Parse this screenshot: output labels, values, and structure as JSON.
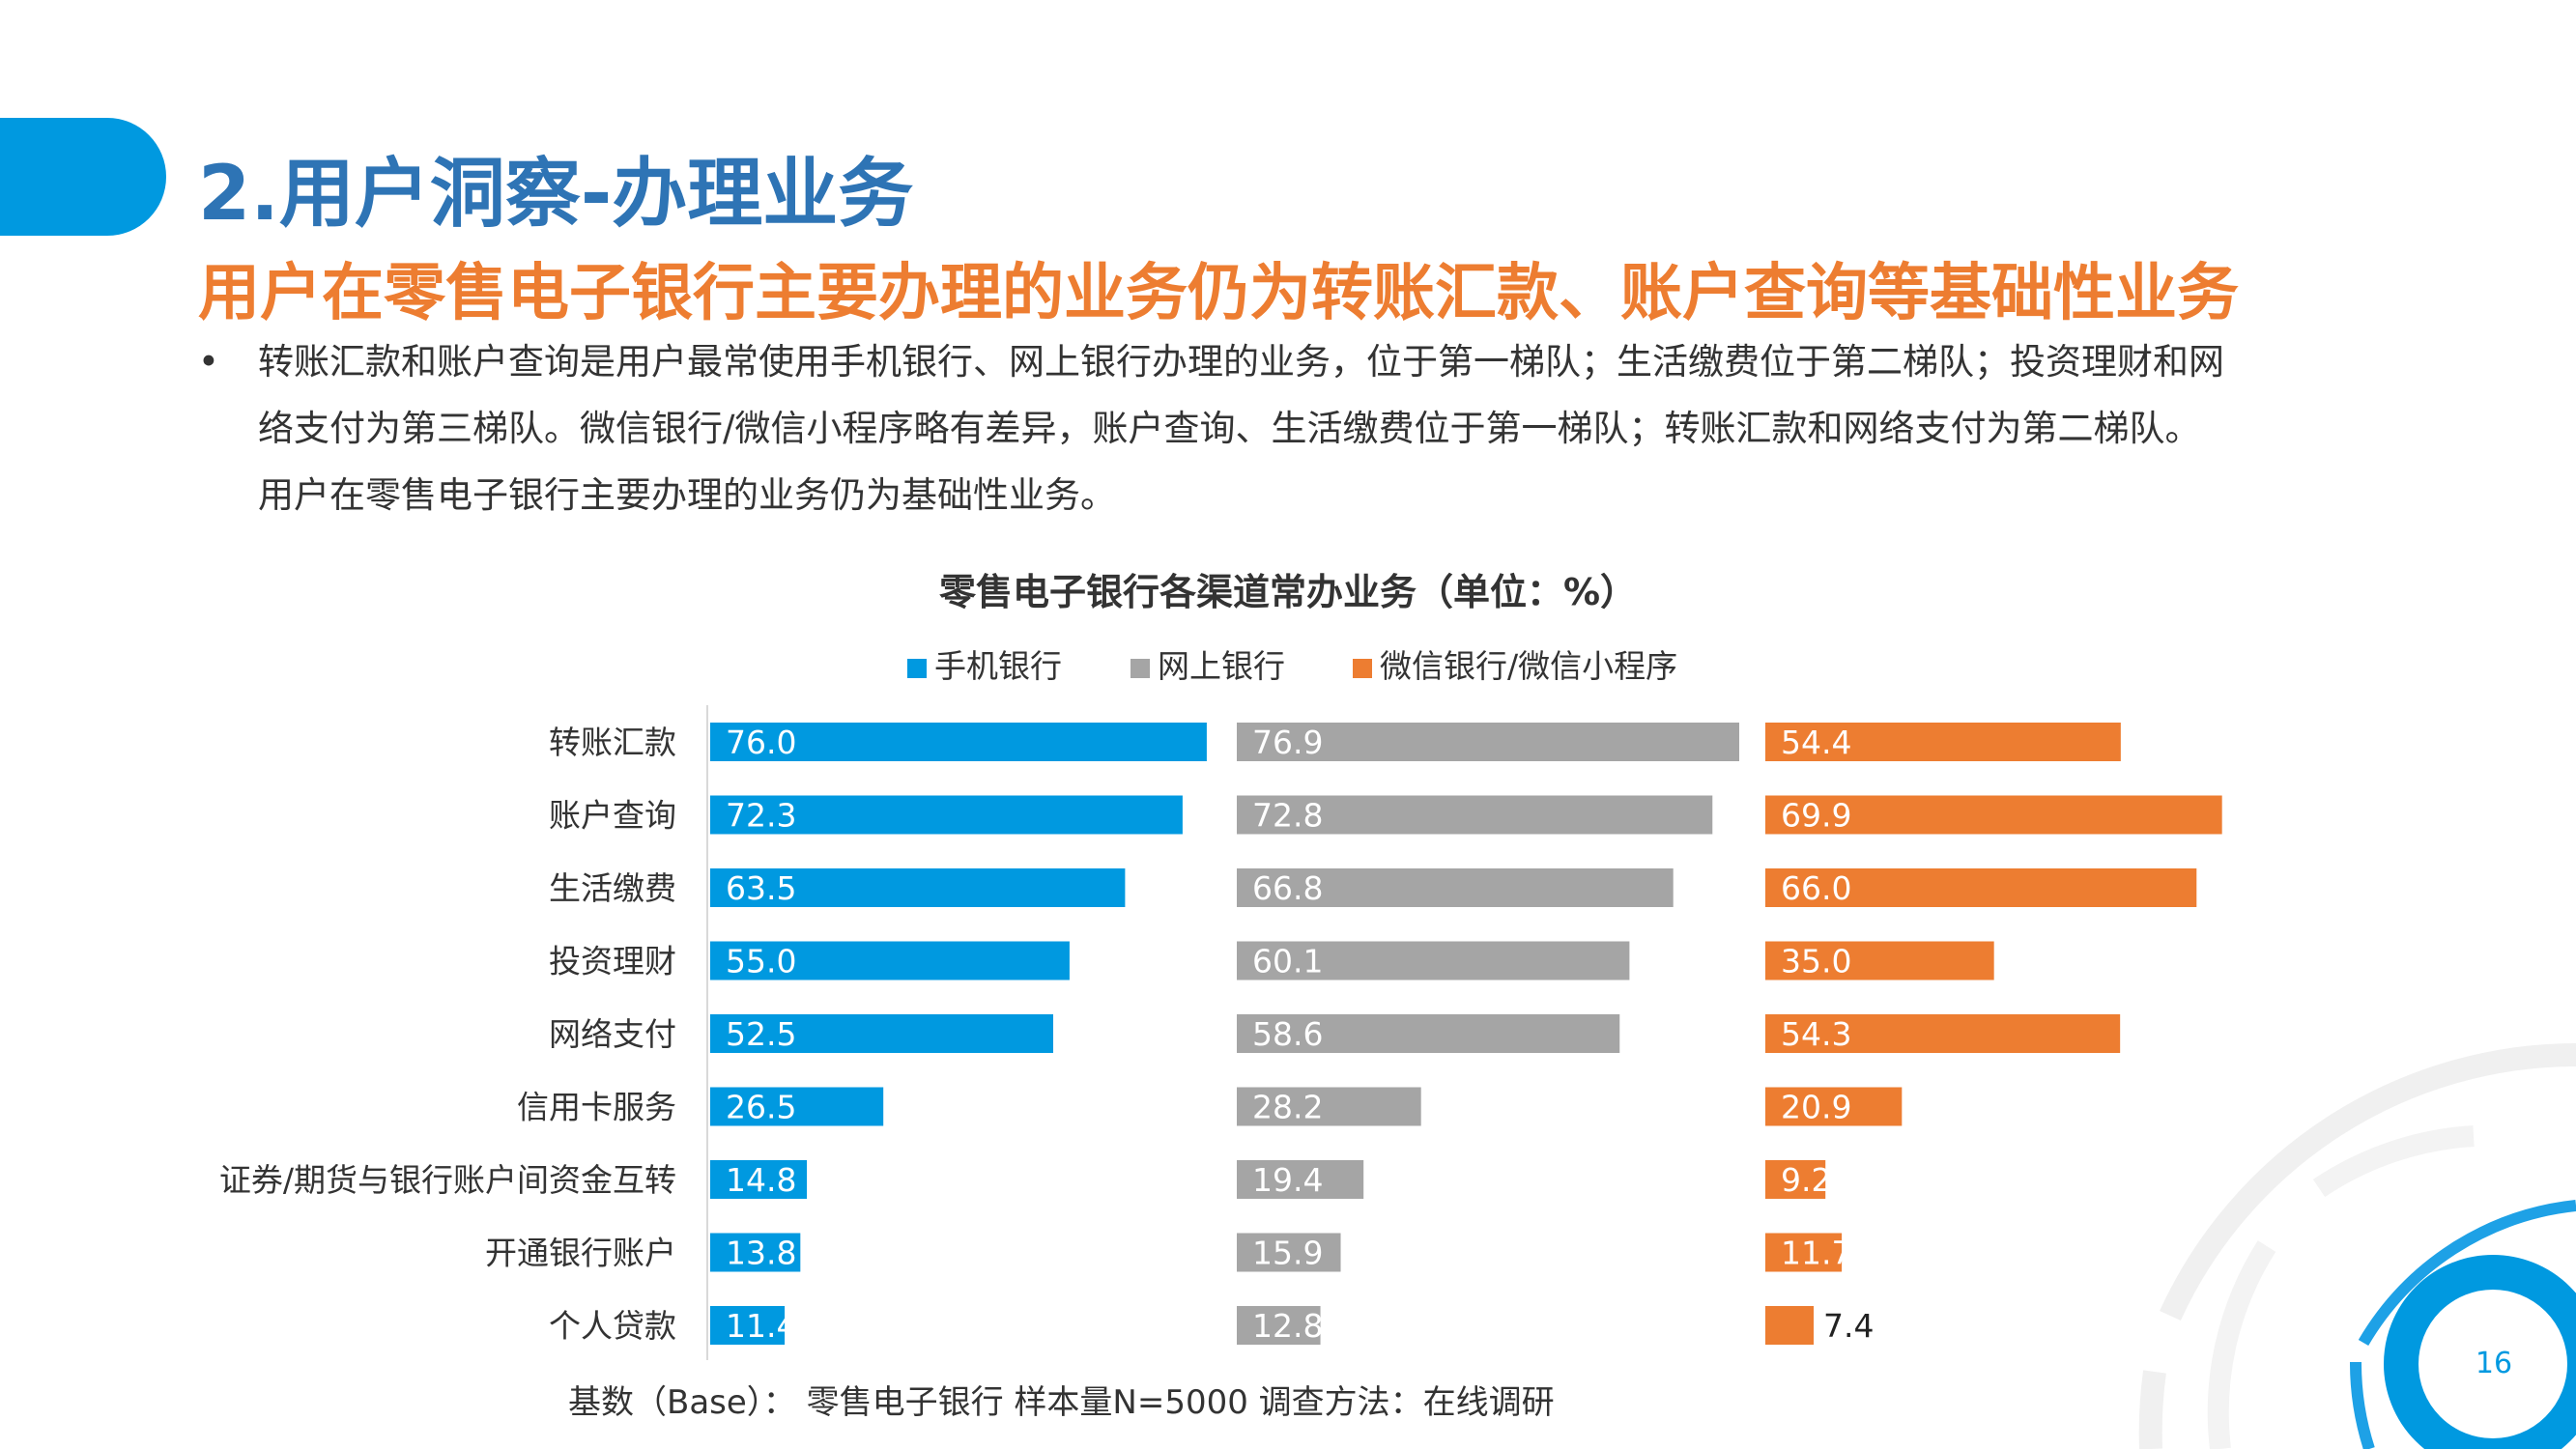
{
  "slide": {
    "title": "2.用户洞察-办理业务",
    "subtitle": "用户在零售电子银行主要办理的业务仍为转账汇款、账户查询等基础性业务",
    "bullet_marker": "•",
    "bullet_lines": [
      "转账汇款和账户查询是用户最常使用手机银行、网上银行办理的业务，位于第一梯队；生活缴费位于第二梯队；投资理财和网",
      "络支付为第三梯队。微信银行/微信小程序略有差异，账户查询、生活缴费位于第一梯队；转账汇款和网络支付为第二梯队。",
      "用户在零售电子银行主要办理的业务仍为基础性业务。"
    ],
    "base_note": "基数（Base）： 零售电子银行  样本量N=5000  调查方法：在线调研",
    "page_number": "16",
    "accent_color": "#0099e0",
    "title_color": "#2e74b5",
    "subtitle_color": "#ed7d31"
  },
  "chart_data": {
    "type": "bar",
    "orientation": "horizontal",
    "title": "零售电子银行各渠道常办业务（单位：%）",
    "categories": [
      "转账汇款",
      "账户查询",
      "生活缴费",
      "投资理财",
      "网络支付",
      "信用卡服务",
      "证券/期货与银行账户间资金互转",
      "开通银行账户",
      "个人贷款"
    ],
    "series": [
      {
        "name": "手机银行",
        "color": "#0099e0",
        "values": [
          76.0,
          72.3,
          63.5,
          55.0,
          52.5,
          26.5,
          14.8,
          13.8,
          11.4
        ]
      },
      {
        "name": "网上银行",
        "color": "#a5a5a5",
        "values": [
          76.9,
          72.8,
          66.8,
          60.1,
          58.6,
          28.2,
          19.4,
          15.9,
          12.8
        ]
      },
      {
        "name": "微信银行/微信小程序",
        "color": "#ed7d31",
        "values": [
          54.4,
          69.9,
          66.0,
          35.0,
          54.3,
          20.9,
          9.2,
          11.7,
          7.4
        ]
      }
    ],
    "xlim": [
      0,
      100
    ],
    "legend": "top",
    "grid": false,
    "value_labels": true
  }
}
